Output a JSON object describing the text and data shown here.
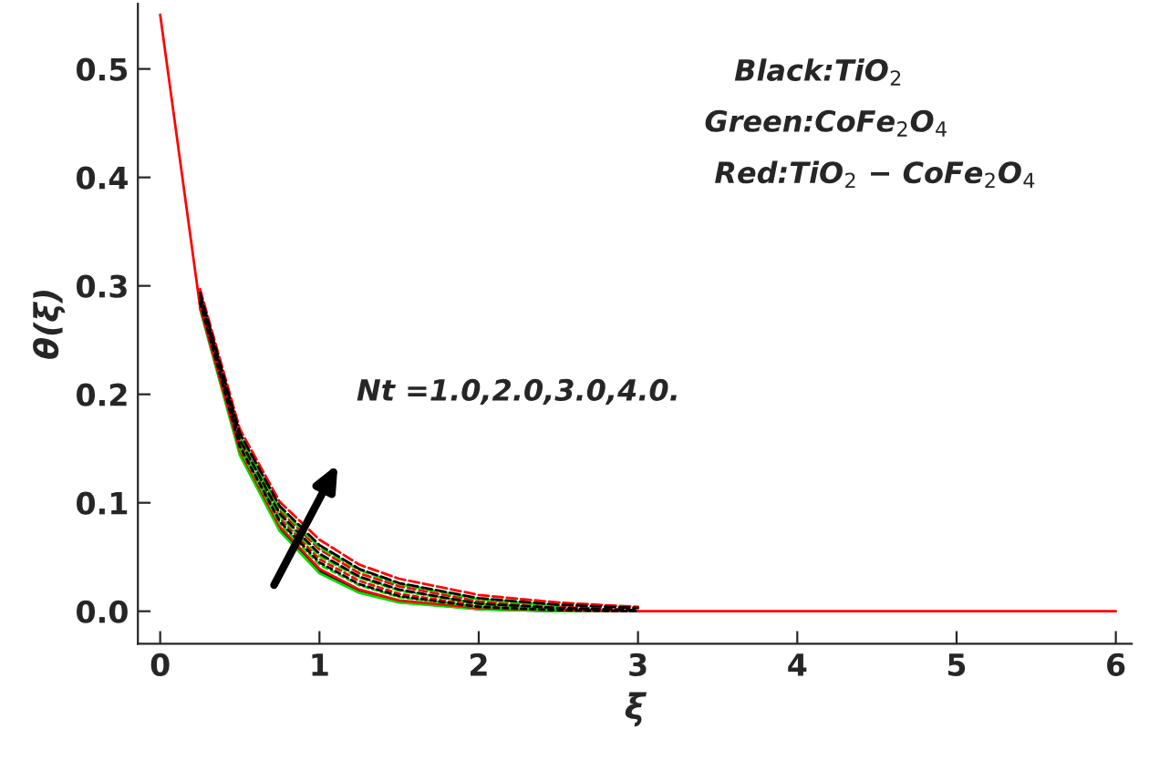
{
  "chart_data": {
    "type": "line",
    "xlabel": "ξ",
    "ylabel": "θ(ξ)",
    "x": [
      0,
      0.25,
      0.5,
      0.75,
      1,
      1.25,
      1.5,
      2,
      2.5,
      3,
      4,
      5,
      6
    ],
    "series": [
      {
        "color": "#000000",
        "line_style": "solid",
        "values": [
          null,
          0.28,
          0.146,
          0.076,
          0.037,
          0.018,
          0.009,
          0.002,
          0,
          0,
          null,
          null,
          null
        ]
      },
      {
        "color": "#000000",
        "line_style": "dashed",
        "values": [
          null,
          0.285,
          0.152,
          0.083,
          0.045,
          0.025,
          0.014,
          0.004,
          0.001,
          0,
          null,
          null,
          null
        ]
      },
      {
        "color": "#000000",
        "line_style": "dashed",
        "values": [
          null,
          0.29,
          0.158,
          0.09,
          0.053,
          0.032,
          0.02,
          0.007,
          0.003,
          0.001,
          null,
          null,
          null
        ]
      },
      {
        "color": "#000000",
        "line_style": "dashed",
        "values": [
          null,
          0.294,
          0.164,
          0.097,
          0.061,
          0.039,
          0.026,
          0.012,
          0.006,
          0.003,
          null,
          null,
          null
        ]
      },
      {
        "color": "#00dd00",
        "line_style": "solid",
        "values": [
          null,
          0.279,
          0.144,
          0.074,
          0.035,
          0.017,
          0.008,
          0.002,
          0,
          0,
          null,
          null,
          null
        ]
      },
      {
        "color": "#00dd00",
        "line_style": "dashed",
        "values": [
          null,
          null,
          0.15,
          0.081,
          0.043,
          0.024,
          0.013,
          0.004,
          0.001,
          null,
          null,
          null,
          null
        ]
      },
      {
        "color": "#00dd00",
        "line_style": "dashed",
        "values": [
          null,
          null,
          0.156,
          0.088,
          0.051,
          0.031,
          0.019,
          0.007,
          0.002,
          null,
          null,
          null,
          null
        ]
      },
      {
        "color": "#00dd00",
        "line_style": "dashed",
        "values": [
          null,
          null,
          0.162,
          0.095,
          0.059,
          0.038,
          0.025,
          0.011,
          0.005,
          null,
          null,
          null,
          null
        ]
      },
      {
        "color": "#ff0000",
        "line_style": "dashed",
        "values": [
          null,
          0.287,
          0.155,
          0.086,
          0.048,
          0.028,
          0.016,
          0.005,
          0.002,
          0,
          null,
          null,
          null
        ]
      },
      {
        "color": "#ff0000",
        "line_style": "dashed",
        "values": [
          null,
          0.292,
          0.161,
          0.093,
          0.057,
          0.035,
          0.023,
          0.009,
          0.004,
          0.001,
          null,
          null,
          null
        ]
      },
      {
        "color": "#ff0000",
        "line_style": "dashed",
        "values": [
          null,
          0.297,
          0.168,
          0.101,
          0.066,
          0.043,
          0.03,
          0.015,
          0.008,
          0.004,
          null,
          null,
          null
        ]
      },
      {
        "color": "#ff0000",
        "line_style": "solid",
        "values": [
          0.55,
          0.281,
          0.148,
          0.078,
          0.039,
          0.02,
          0.01,
          0.003,
          0.001,
          0,
          0,
          0,
          0
        ]
      }
    ],
    "xlim": [
      -0.14,
      6.1
    ],
    "ylim": [
      -0.03,
      0.56
    ],
    "xticks": [
      0,
      1,
      2,
      3,
      4,
      5,
      6
    ],
    "yticks": [
      {
        "value": 0,
        "label": "0.0"
      },
      {
        "value": 0.1,
        "label": "0.1"
      },
      {
        "value": 0.2,
        "label": "0.2"
      },
      {
        "value": 0.3,
        "label": "0.3"
      },
      {
        "value": 0.4,
        "label": "0.4"
      },
      {
        "value": 0.5,
        "label": "0.5"
      }
    ],
    "grid": false,
    "legend": false,
    "annotations": [
      "Black:TiO$_{2}$",
      "Green:CoFe$_{2}$O$_{4}$",
      "Red:TiO$_{2}$ − CoFe$_{2}$O$_{4}$",
      "Nt =1.0,2.0,3.0,4.0."
    ]
  }
}
